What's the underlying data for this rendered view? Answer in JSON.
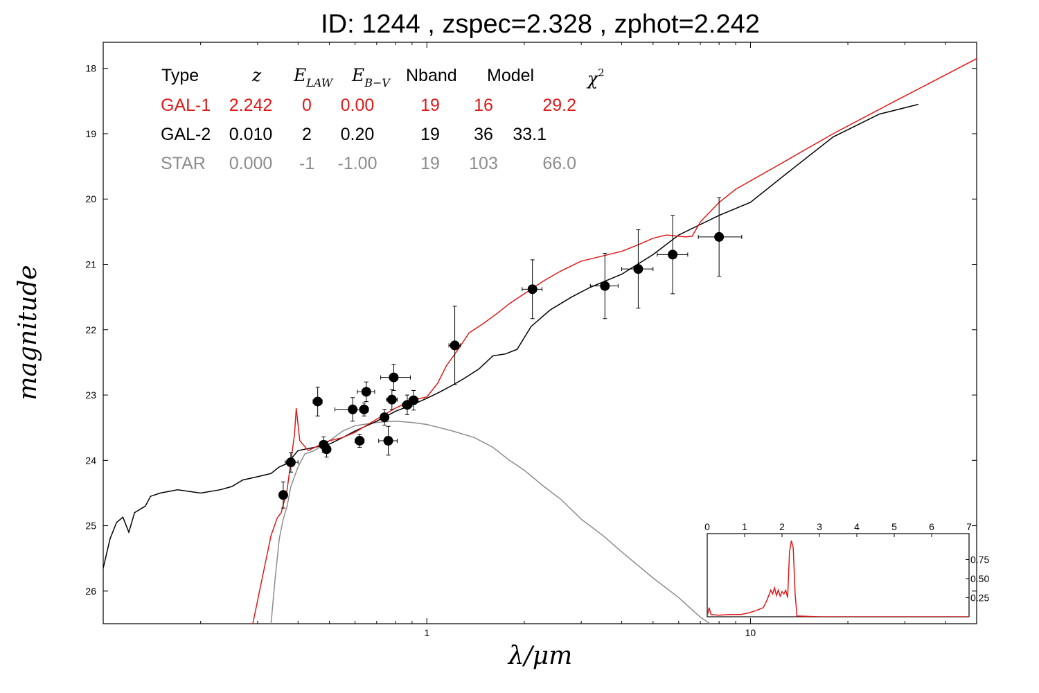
{
  "title": "ID:  1244  , zspec=2.328 , zphot=2.242",
  "colors": {
    "gal1": "#e01818",
    "gal2": "#000000",
    "star": "#8c8c8c"
  },
  "table": {
    "headers": {
      "type": "Type",
      "z": "z",
      "elaw": "E",
      "elaw_sub": "LAW",
      "ebv": "E",
      "ebv_sub": "B−V",
      "nband": "Nband",
      "model": "Model",
      "chi": "χ",
      "chi_sup": "2"
    },
    "rows": [
      {
        "type": "GAL-1",
        "z": "2.242",
        "elaw": "0",
        "ebv": "0.00",
        "nband": "19",
        "model": "16",
        "chi": "29.2"
      },
      {
        "type": "GAL-2",
        "z": "0.010",
        "elaw": "2",
        "ebv": "0.20",
        "nband": "19",
        "model": "36",
        "chi": "33.1"
      },
      {
        "type": "STAR",
        "z": "0.000",
        "elaw": "-1",
        "ebv": "-1.00",
        "nband": "19",
        "model": "103",
        "chi": "66.0"
      }
    ]
  },
  "chart_data": [
    {
      "type": "scatter",
      "xlabel": "λ/μm",
      "ylabel": "magnitude",
      "xscale": "log",
      "xlim": [
        0.1,
        50
      ],
      "ylim": [
        26.5,
        17.6
      ],
      "xticks": [
        1,
        10
      ],
      "xtick_labels": [
        "1",
        "10"
      ],
      "yticks": [
        18,
        19,
        20,
        21,
        22,
        23,
        24,
        25,
        26
      ],
      "ytick_labels": [
        "18",
        "19",
        "20",
        "21",
        "22",
        "23",
        "24",
        "25",
        "26"
      ],
      "points": [
        {
          "x": 0.36,
          "y": 24.53,
          "xerr": [
            0.008,
            0.008
          ],
          "yerr": 0.2
        },
        {
          "x": 0.38,
          "y": 24.03,
          "xerr": [
            0.015,
            0.02
          ],
          "yerr": 0.15
        },
        {
          "x": 0.46,
          "y": 23.1,
          "xerr": [
            0.015,
            0.015
          ],
          "yerr": 0.22
        },
        {
          "x": 0.48,
          "y": 23.76,
          "xerr": [
            0.008,
            0.008
          ],
          "yerr": 0.12
        },
        {
          "x": 0.49,
          "y": 23.83,
          "xerr": [
            0.008,
            0.008
          ],
          "yerr": 0.12
        },
        {
          "x": 0.59,
          "y": 23.22,
          "xerr": [
            0.07,
            0.035
          ],
          "yerr": 0.18
        },
        {
          "x": 0.62,
          "y": 23.7,
          "xerr": [
            0.02,
            0.02
          ],
          "yerr": 0.1
        },
        {
          "x": 0.64,
          "y": 23.22,
          "xerr": [
            0.02,
            0.02
          ],
          "yerr": 0.1
        },
        {
          "x": 0.65,
          "y": 22.95,
          "xerr": [
            0.04,
            0.04
          ],
          "yerr": 0.15
        },
        {
          "x": 0.74,
          "y": 23.34,
          "xerr": [
            0.02,
            0.02
          ],
          "yerr": 0.12
        },
        {
          "x": 0.76,
          "y": 23.7,
          "xerr": [
            0.05,
            0.05
          ],
          "yerr": 0.22
        },
        {
          "x": 0.79,
          "y": 22.73,
          "xerr": [
            0.07,
            0.1
          ],
          "yerr": 0.2
        },
        {
          "x": 0.78,
          "y": 23.07,
          "xerr": [
            0.03,
            0.03
          ],
          "yerr": 0.15
        },
        {
          "x": 0.87,
          "y": 23.15,
          "xerr": [
            0.03,
            0.03
          ],
          "yerr": 0.15
        },
        {
          "x": 0.91,
          "y": 23.08,
          "xerr": [
            0.03,
            0.03
          ],
          "yerr": 0.15
        },
        {
          "x": 1.22,
          "y": 22.24,
          "xerr": [
            0.05,
            0.05
          ],
          "yerr": 0.6
        },
        {
          "x": 2.12,
          "y": 21.38,
          "xerr": [
            0.15,
            0.15
          ],
          "yerr": 0.45
        },
        {
          "x": 3.55,
          "y": 21.33,
          "xerr": [
            0.35,
            0.35
          ],
          "yerr": 0.5
        },
        {
          "x": 4.5,
          "y": 21.07,
          "xerr": [
            0.5,
            0.5
          ],
          "yerr": 0.6
        },
        {
          "x": 5.75,
          "y": 20.85,
          "xerr": [
            0.6,
            0.65
          ],
          "yerr": 0.6
        },
        {
          "x": 8.0,
          "y": 20.58,
          "xerr": [
            1.1,
            1.4
          ],
          "yerr": 0.6
        }
      ],
      "series": [
        {
          "name": "GAL-1",
          "color": "#e01818",
          "points": [
            [
              0.29,
              26.5
            ],
            [
              0.31,
              25.8
            ],
            [
              0.33,
              25.15
            ],
            [
              0.345,
              24.88
            ],
            [
              0.355,
              24.8
            ],
            [
              0.37,
              24.45
            ],
            [
              0.38,
              24.02
            ],
            [
              0.39,
              23.6
            ],
            [
              0.395,
              23.2
            ],
            [
              0.405,
              23.7
            ],
            [
              0.43,
              23.85
            ],
            [
              0.46,
              23.78
            ],
            [
              0.5,
              23.7
            ],
            [
              0.55,
              23.65
            ],
            [
              0.6,
              23.57
            ],
            [
              0.7,
              23.37
            ],
            [
              0.8,
              23.2
            ],
            [
              0.9,
              23.08
            ],
            [
              1.0,
              23.03
            ],
            [
              1.08,
              22.82
            ],
            [
              1.15,
              22.55
            ],
            [
              1.25,
              22.3
            ],
            [
              1.35,
              22.05
            ],
            [
              1.5,
              21.9
            ],
            [
              1.65,
              21.75
            ],
            [
              1.8,
              21.6
            ],
            [
              2.0,
              21.45
            ],
            [
              2.3,
              21.25
            ],
            [
              2.6,
              21.1
            ],
            [
              3.0,
              20.95
            ],
            [
              3.5,
              20.87
            ],
            [
              4.0,
              20.8
            ],
            [
              4.5,
              20.7
            ],
            [
              5.0,
              20.6
            ],
            [
              5.5,
              20.55
            ],
            [
              6.3,
              20.58
            ],
            [
              6.6,
              20.57
            ],
            [
              7.0,
              20.35
            ],
            [
              8.0,
              20.05
            ],
            [
              9.0,
              19.85
            ],
            [
              12.0,
              19.5
            ],
            [
              18.0,
              19.0
            ],
            [
              28.0,
              18.5
            ],
            [
              35.0,
              18.25
            ],
            [
              50.0,
              17.85
            ]
          ]
        },
        {
          "name": "GAL-2",
          "color": "#000000",
          "points": [
            [
              0.1,
              25.65
            ],
            [
              0.105,
              25.2
            ],
            [
              0.11,
              24.95
            ],
            [
              0.115,
              24.87
            ],
            [
              0.12,
              25.1
            ],
            [
              0.125,
              24.8
            ],
            [
              0.135,
              24.7
            ],
            [
              0.14,
              24.55
            ],
            [
              0.15,
              24.5
            ],
            [
              0.17,
              24.45
            ],
            [
              0.2,
              24.5
            ],
            [
              0.23,
              24.45
            ],
            [
              0.25,
              24.4
            ],
            [
              0.27,
              24.3
            ],
            [
              0.3,
              24.25
            ],
            [
              0.33,
              24.2
            ],
            [
              0.35,
              24.1
            ],
            [
              0.37,
              24.05
            ],
            [
              0.4,
              23.85
            ],
            [
              0.45,
              23.8
            ],
            [
              0.5,
              23.75
            ],
            [
              0.55,
              23.65
            ],
            [
              0.6,
              23.55
            ],
            [
              0.7,
              23.4
            ],
            [
              0.8,
              23.25
            ],
            [
              0.9,
              23.15
            ],
            [
              1.0,
              23.05
            ],
            [
              1.1,
              22.95
            ],
            [
              1.2,
              22.85
            ],
            [
              1.3,
              22.75
            ],
            [
              1.45,
              22.6
            ],
            [
              1.6,
              22.4
            ],
            [
              1.75,
              22.37
            ],
            [
              1.9,
              22.3
            ],
            [
              2.1,
              21.95
            ],
            [
              2.4,
              21.7
            ],
            [
              2.8,
              21.5
            ],
            [
              3.2,
              21.35
            ],
            [
              4.0,
              21.15
            ],
            [
              5.0,
              20.85
            ],
            [
              6.0,
              20.55
            ],
            [
              8.0,
              20.25
            ],
            [
              10.0,
              20.05
            ],
            [
              13.0,
              19.6
            ],
            [
              18.0,
              19.05
            ],
            [
              25.0,
              18.7
            ],
            [
              33.0,
              18.55
            ]
          ]
        },
        {
          "name": "STAR",
          "color": "#8c8c8c",
          "points": [
            [
              0.33,
              26.5
            ],
            [
              0.34,
              25.8
            ],
            [
              0.35,
              25.2
            ],
            [
              0.36,
              24.9
            ],
            [
              0.37,
              24.7
            ],
            [
              0.38,
              24.4
            ],
            [
              0.4,
              24.1
            ],
            [
              0.42,
              23.9
            ],
            [
              0.45,
              23.85
            ],
            [
              0.5,
              23.7
            ],
            [
              0.55,
              23.55
            ],
            [
              0.6,
              23.47
            ],
            [
              0.7,
              23.42
            ],
            [
              0.8,
              23.4
            ],
            [
              0.9,
              23.42
            ],
            [
              1.0,
              23.45
            ],
            [
              1.2,
              23.55
            ],
            [
              1.4,
              23.65
            ],
            [
              1.6,
              23.8
            ],
            [
              1.8,
              24.0
            ],
            [
              2.0,
              24.15
            ],
            [
              2.3,
              24.4
            ],
            [
              2.6,
              24.6
            ],
            [
              3.0,
              24.9
            ],
            [
              3.5,
              25.15
            ],
            [
              4.0,
              25.4
            ],
            [
              5.0,
              25.8
            ],
            [
              6.0,
              26.1
            ],
            [
              7.0,
              26.4
            ],
            [
              7.5,
              26.5
            ]
          ]
        }
      ]
    },
    {
      "type": "line",
      "xlim": [
        0,
        7
      ],
      "ylim": [
        0,
        1.0
      ],
      "xticks": [
        0,
        1,
        2,
        3,
        4,
        5,
        6,
        7
      ],
      "xtick_labels": [
        "0",
        "1",
        "2",
        "3",
        "4",
        "5",
        "6",
        "7"
      ],
      "yticks": [
        0.25,
        0.5,
        0.75
      ],
      "ytick_labels": [
        "0.25",
        "0.50",
        "0.75"
      ],
      "series": [
        {
          "name": "",
          "color": "#e01818",
          "points": [
            [
              0,
              0.01
            ],
            [
              0.05,
              0.12
            ],
            [
              0.1,
              0.03
            ],
            [
              0.3,
              0.02
            ],
            [
              0.6,
              0.03
            ],
            [
              0.9,
              0.03
            ],
            [
              1.1,
              0.05
            ],
            [
              1.3,
              0.08
            ],
            [
              1.5,
              0.12
            ],
            [
              1.6,
              0.22
            ],
            [
              1.7,
              0.35
            ],
            [
              1.75,
              0.3
            ],
            [
              1.8,
              0.38
            ],
            [
              1.85,
              0.28
            ],
            [
              1.9,
              0.35
            ],
            [
              1.95,
              0.27
            ],
            [
              2.0,
              0.33
            ],
            [
              2.05,
              0.3
            ],
            [
              2.1,
              0.35
            ],
            [
              2.15,
              0.25
            ],
            [
              2.2,
              0.85
            ],
            [
              2.25,
              1.0
            ],
            [
              2.3,
              0.9
            ],
            [
              2.35,
              0.3
            ],
            [
              2.4,
              0.01
            ],
            [
              3.0,
              0.0
            ],
            [
              7.0,
              0.0
            ]
          ]
        }
      ]
    }
  ]
}
